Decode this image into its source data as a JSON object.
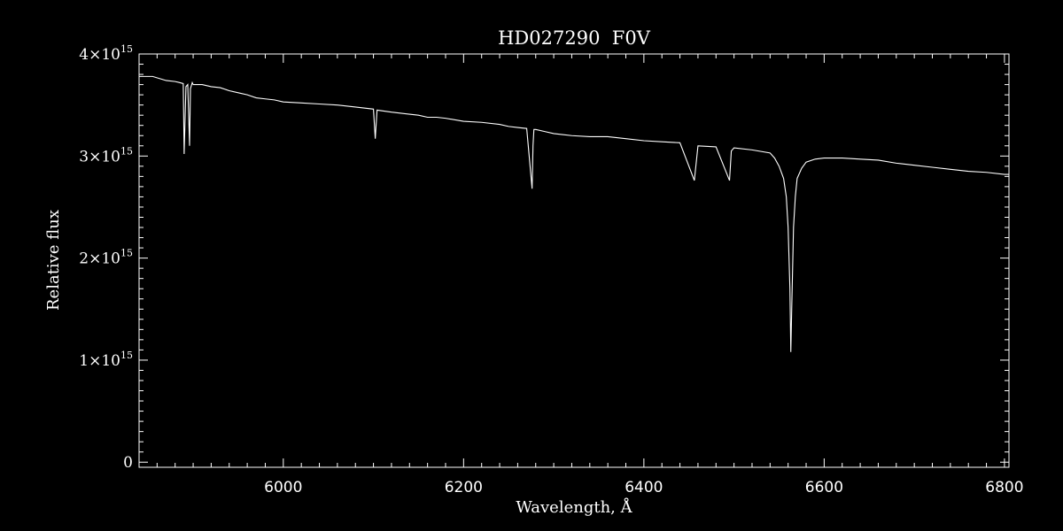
{
  "chart_data": {
    "type": "line",
    "title": "HD027290  F0V",
    "xlabel": "Wavelength, Å",
    "ylabel": "Relative flux",
    "xlim": [
      5840,
      6805
    ],
    "ylim": [
      -50000000000000.0,
      4000000000000000.0
    ],
    "x_ticks": [
      {
        "value": 6000,
        "label": "6000"
      },
      {
        "value": 6200,
        "label": "6200"
      },
      {
        "value": 6400,
        "label": "6400"
      },
      {
        "value": 6600,
        "label": "6600"
      },
      {
        "value": 6800,
        "label": "6800"
      }
    ],
    "y_ticks": [
      {
        "value": 0,
        "label": "0",
        "exp": ""
      },
      {
        "value": 1000000000000000.0,
        "label": "1×10",
        "exp": "15"
      },
      {
        "value": 2000000000000000.0,
        "label": "2×10",
        "exp": "15"
      },
      {
        "value": 3000000000000000.0,
        "label": "3×10",
        "exp": "15"
      },
      {
        "value": 4000000000000000.0,
        "label": "4×10",
        "exp": "15"
      }
    ],
    "x_minor_step": 20,
    "y_minor_step": 100000000000000.0,
    "grid": false,
    "line_color": "#ffffff",
    "background": "#000000",
    "series": [
      {
        "x": [
          5840,
          5855,
          5870,
          5880,
          5885,
          5889,
          5890,
          5892,
          5894,
          5896,
          5897,
          5899,
          5900,
          5910,
          5920,
          5930,
          5940,
          5950,
          5960,
          5970,
          5980,
          5990,
          6000,
          6020,
          6040,
          6060,
          6080,
          6100,
          6102,
          6104,
          6120,
          6140,
          6150,
          6160,
          6170,
          6180,
          6200,
          6220,
          6240,
          6250,
          6260,
          6270,
          6276,
          6277,
          6278,
          6280,
          6290,
          6300,
          6320,
          6340,
          6360,
          6380,
          6400,
          6420,
          6440,
          6456,
          6460,
          6480,
          6495,
          6497,
          6500,
          6520,
          6540,
          6545,
          6550,
          6555,
          6558,
          6560,
          6562,
          6563,
          6564,
          6566,
          6568,
          6570,
          6575,
          6580,
          6590,
          6600,
          6620,
          6640,
          6660,
          6680,
          6700,
          6720,
          6740,
          6760,
          6780,
          6800,
          6805
        ],
        "y": [
          3780000000000000.0,
          3780000000000000.0,
          3740000000000000.0,
          3730000000000000.0,
          3720000000000000.0,
          3710000000000000.0,
          3020000000000000.0,
          3680000000000000.0,
          3700000000000000.0,
          3100000000000000.0,
          3660000000000000.0,
          3720000000000000.0,
          3700000000000000.0,
          3700000000000000.0,
          3680000000000000.0,
          3670000000000000.0,
          3640000000000000.0,
          3620000000000000.0,
          3600000000000000.0,
          3570000000000000.0,
          3560000000000000.0,
          3550000000000000.0,
          3530000000000000.0,
          3520000000000000.0,
          3510000000000000.0,
          3500000000000000.0,
          3480000000000000.0,
          3460000000000000.0,
          3170000000000000.0,
          3450000000000000.0,
          3430000000000000.0,
          3410000000000000.0,
          3400000000000000.0,
          3380000000000000.0,
          3380000000000000.0,
          3370000000000000.0,
          3340000000000000.0,
          3330000000000000.0,
          3310000000000000.0,
          3290000000000000.0,
          3280000000000000.0,
          3270000000000000.0,
          2680000000000000.0,
          3100000000000000.0,
          3260000000000000.0,
          3260000000000000.0,
          3240000000000000.0,
          3220000000000000.0,
          3200000000000000.0,
          3190000000000000.0,
          3190000000000000.0,
          3170000000000000.0,
          3150000000000000.0,
          3140000000000000.0,
          3130000000000000.0,
          2760000000000000.0,
          3100000000000000.0,
          3090000000000000.0,
          2760000000000000.0,
          3050000000000000.0,
          3080000000000000.0,
          3060000000000000.0,
          3030000000000000.0,
          2980000000000000.0,
          2900000000000000.0,
          2780000000000000.0,
          2600000000000000.0,
          2300000000000000.0,
          1700000000000000.0,
          1080000000000000.0,
          1500000000000000.0,
          2300000000000000.0,
          2600000000000000.0,
          2780000000000000.0,
          2880000000000000.0,
          2940000000000000.0,
          2970000000000000.0,
          2980000000000000.0,
          2980000000000000.0,
          2970000000000000.0,
          2960000000000000.0,
          2930000000000000.0,
          2910000000000000.0,
          2890000000000000.0,
          2870000000000000.0,
          2850000000000000.0,
          2840000000000000.0,
          2820000000000000.0,
          2820000000000000.0
        ]
      }
    ]
  }
}
